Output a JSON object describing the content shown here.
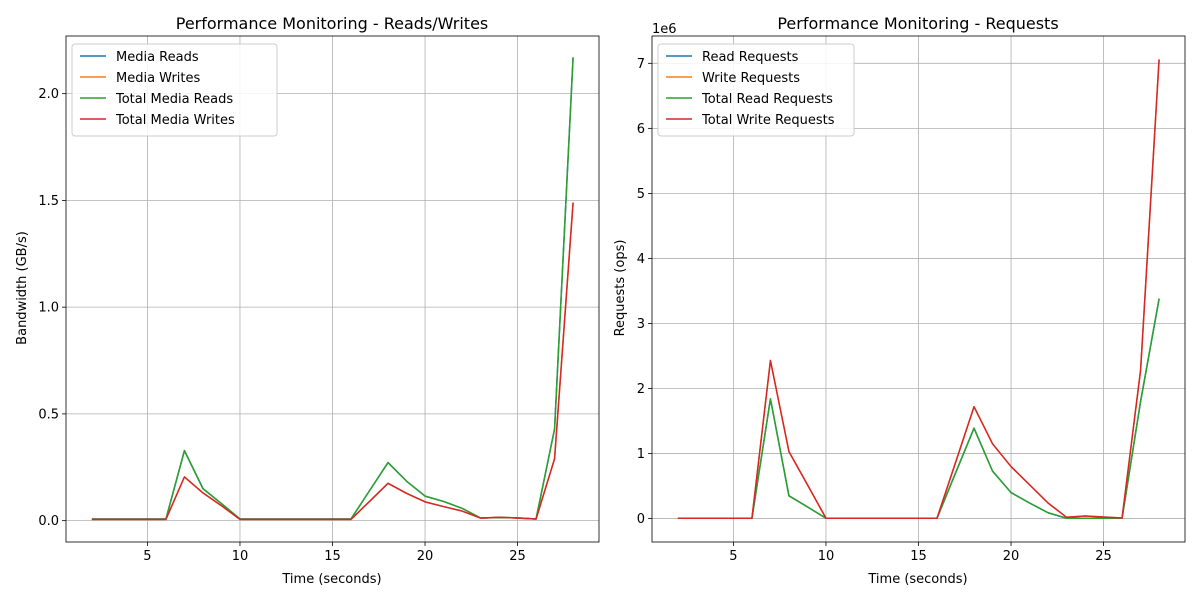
{
  "chart_data": [
    {
      "type": "line",
      "title": "Performance Monitoring - Reads/Writes",
      "xlabel": "Time (seconds)",
      "ylabel": "Bandwidth (GB/s)",
      "xlim": [
        0.6,
        29.4
      ],
      "ylim": [
        -0.1,
        2.27
      ],
      "xticks": [
        5,
        10,
        15,
        20,
        25
      ],
      "yticks": [
        0.0,
        0.5,
        1.0,
        1.5,
        2.0
      ],
      "ytick_labels": [
        "0.0",
        "0.5",
        "1.0",
        "1.5",
        "2.0"
      ],
      "offset_text": "",
      "grid": true,
      "legend_position": "upper-left",
      "x": [
        2,
        3,
        4,
        5,
        6,
        7,
        8,
        9,
        10,
        11,
        12,
        13,
        14,
        15,
        16,
        17,
        18,
        19,
        20,
        21,
        22,
        23,
        24,
        25,
        26,
        27,
        28
      ],
      "series": [
        {
          "name": "Media Reads",
          "color": "#1f77b4",
          "values": [
            0.008,
            0.008,
            0.008,
            0.008,
            0.008,
            0.328,
            0.15,
            0.08,
            0.008,
            0.008,
            0.008,
            0.008,
            0.008,
            0.008,
            0.008,
            0.14,
            0.272,
            0.185,
            0.115,
            0.09,
            0.058,
            0.012,
            0.015,
            0.013,
            0.008,
            0.43,
            2.17
          ]
        },
        {
          "name": "Media Writes",
          "color": "#ff7f0e",
          "values": [
            0.006,
            0.006,
            0.006,
            0.006,
            0.006,
            0.205,
            0.13,
            0.07,
            0.006,
            0.006,
            0.006,
            0.006,
            0.006,
            0.006,
            0.006,
            0.09,
            0.175,
            0.128,
            0.088,
            0.066,
            0.045,
            0.012,
            0.016,
            0.012,
            0.008,
            0.29,
            1.49
          ]
        },
        {
          "name": "Total Media Reads",
          "color": "#2ca02c",
          "values": [
            0.008,
            0.008,
            0.008,
            0.008,
            0.008,
            0.328,
            0.15,
            0.08,
            0.008,
            0.008,
            0.008,
            0.008,
            0.008,
            0.008,
            0.008,
            0.14,
            0.272,
            0.185,
            0.115,
            0.09,
            0.058,
            0.012,
            0.015,
            0.013,
            0.008,
            0.43,
            2.17
          ]
        },
        {
          "name": "Total Media Writes",
          "color": "#d62728",
          "values": [
            0.006,
            0.006,
            0.006,
            0.006,
            0.006,
            0.205,
            0.13,
            0.07,
            0.006,
            0.006,
            0.006,
            0.006,
            0.006,
            0.006,
            0.006,
            0.09,
            0.175,
            0.128,
            0.088,
            0.066,
            0.045,
            0.012,
            0.016,
            0.012,
            0.008,
            0.29,
            1.49
          ]
        }
      ]
    },
    {
      "type": "line",
      "title": "Performance Monitoring - Requests",
      "xlabel": "Time (seconds)",
      "ylabel": "Requests (ops)",
      "xlim": [
        0.6,
        29.4
      ],
      "ylim": [
        -0.36,
        7.42
      ],
      "xticks": [
        5,
        10,
        15,
        20,
        25
      ],
      "yticks": [
        0,
        1,
        2,
        3,
        4,
        5,
        6,
        7
      ],
      "ytick_labels": [
        "0",
        "1",
        "2",
        "3",
        "4",
        "5",
        "6",
        "7"
      ],
      "offset_text": "1e6",
      "grid": true,
      "legend_position": "upper-left",
      "x": [
        2,
        3,
        4,
        5,
        6,
        7,
        8,
        9,
        10,
        11,
        12,
        13,
        14,
        15,
        16,
        17,
        18,
        19,
        20,
        21,
        22,
        23,
        24,
        25,
        26,
        27,
        28
      ],
      "series": [
        {
          "name": "Read Requests",
          "color": "#1f77b4",
          "values": [
            0.005,
            0.005,
            0.005,
            0.005,
            0.005,
            1.84,
            0.35,
            0.18,
            0.005,
            0.005,
            0.005,
            0.005,
            0.005,
            0.005,
            0.005,
            0.7,
            1.39,
            0.73,
            0.4,
            0.24,
            0.09,
            0.005,
            0.005,
            0.005,
            0.005,
            1.8,
            3.38
          ]
        },
        {
          "name": "Write Requests",
          "color": "#ff7f0e",
          "values": [
            0.005,
            0.005,
            0.005,
            0.005,
            0.005,
            2.43,
            1.03,
            0.52,
            0.005,
            0.005,
            0.005,
            0.005,
            0.005,
            0.005,
            0.005,
            0.86,
            1.72,
            1.15,
            0.8,
            0.52,
            0.24,
            0.02,
            0.04,
            0.025,
            0.01,
            2.28,
            7.06
          ]
        },
        {
          "name": "Total Read Requests",
          "color": "#2ca02c",
          "values": [
            0.005,
            0.005,
            0.005,
            0.005,
            0.005,
            1.84,
            0.35,
            0.18,
            0.005,
            0.005,
            0.005,
            0.005,
            0.005,
            0.005,
            0.005,
            0.7,
            1.39,
            0.73,
            0.4,
            0.24,
            0.09,
            0.005,
            0.005,
            0.005,
            0.005,
            1.8,
            3.38
          ]
        },
        {
          "name": "Total Write Requests",
          "color": "#d62728",
          "values": [
            0.005,
            0.005,
            0.005,
            0.005,
            0.005,
            2.43,
            1.03,
            0.52,
            0.005,
            0.005,
            0.005,
            0.005,
            0.005,
            0.005,
            0.005,
            0.86,
            1.72,
            1.15,
            0.8,
            0.52,
            0.24,
            0.02,
            0.04,
            0.025,
            0.01,
            2.28,
            7.06
          ]
        }
      ]
    }
  ]
}
